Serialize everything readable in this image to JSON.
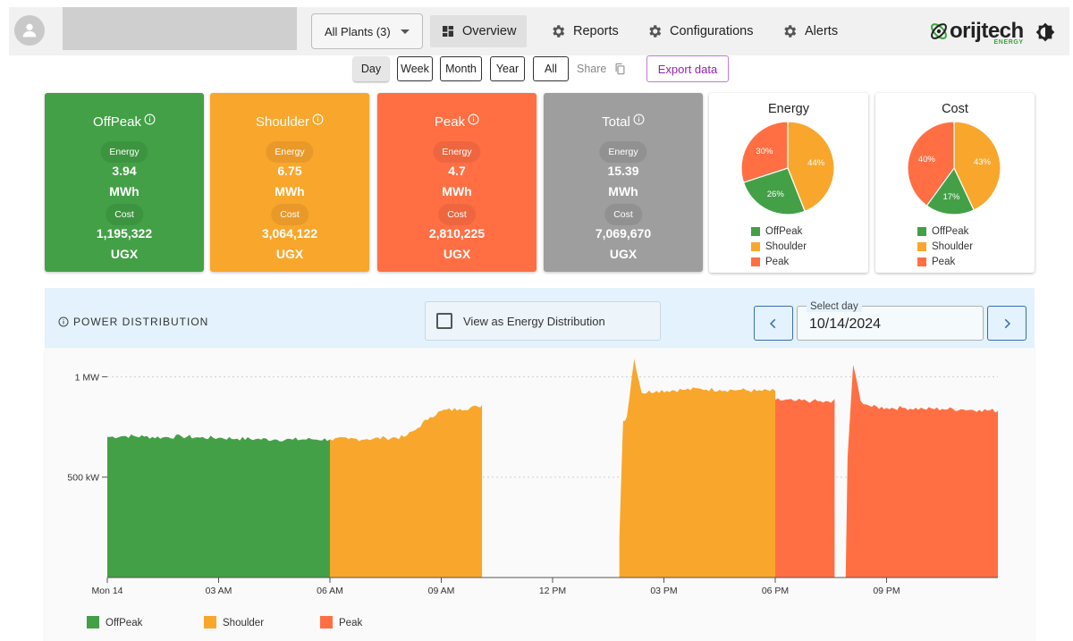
{
  "header": {
    "plants_select": "All Plants (3)",
    "tabs": [
      {
        "label": "Overview",
        "icon": "dashboard-icon",
        "active": true
      },
      {
        "label": "Reports",
        "icon": "gear-icon",
        "active": false
      },
      {
        "label": "Configurations",
        "icon": "gear-icon",
        "active": false
      },
      {
        "label": "Alerts",
        "icon": "gear-icon",
        "active": false
      }
    ],
    "logo": {
      "name": "orijtech",
      "sub": "ENERGY"
    }
  },
  "toolbar": {
    "ranges": [
      "Day",
      "Week",
      "Month",
      "Year",
      "All"
    ],
    "active_range": "Day",
    "share_label": "Share",
    "export_label": "Export data"
  },
  "summary": {
    "energy_label": "Energy",
    "cost_label": "Cost",
    "cards": [
      {
        "key": "offpeak",
        "title": "OffPeak",
        "energy": "3.94",
        "energy_unit": "MWh",
        "cost": "1,195,322",
        "cost_unit": "UGX"
      },
      {
        "key": "shoulder",
        "title": "Shoulder",
        "energy": "6.75",
        "energy_unit": "MWh",
        "cost": "3,064,122",
        "cost_unit": "UGX"
      },
      {
        "key": "peak",
        "title": "Peak",
        "energy": "4.7",
        "energy_unit": "MWh",
        "cost": "2,810,225",
        "cost_unit": "UGX"
      },
      {
        "key": "total",
        "title": "Total",
        "energy": "15.39",
        "energy_unit": "MWh",
        "cost": "7,069,670",
        "cost_unit": "UGX"
      }
    ]
  },
  "colors": {
    "offpeak": "#43a047",
    "shoulder": "#f8a72c",
    "peak": "#ff6f43",
    "total": "#9e9e9e",
    "accent": "#8e24aa"
  },
  "pies": [
    {
      "title": "Energy",
      "slices": [
        {
          "name": "Shoulder",
          "pct": 44,
          "label": "44%"
        },
        {
          "name": "OffPeak",
          "pct": 26,
          "label": "26%"
        },
        {
          "name": "Peak",
          "pct": 30,
          "label": "30%"
        }
      ]
    },
    {
      "title": "Cost",
      "slices": [
        {
          "name": "Shoulder",
          "pct": 43,
          "label": "43%"
        },
        {
          "name": "OffPeak",
          "pct": 17,
          "label": "17%"
        },
        {
          "name": "Peak",
          "pct": 40,
          "label": "40%"
        }
      ]
    }
  ],
  "pie_legend": [
    "OffPeak",
    "Shoulder",
    "Peak"
  ],
  "power": {
    "title": "POWER DISTRIBUTION",
    "toggle_label": "View as Energy Distribution",
    "date_label": "Select day",
    "date_value": "10/14/2024"
  },
  "chart_data": {
    "type": "area",
    "x_ticks": [
      "Mon 14",
      "03 AM",
      "06 AM",
      "09 AM",
      "12 PM",
      "03 PM",
      "06 PM",
      "09 PM"
    ],
    "y_ticks": [
      {
        "value": 500,
        "label": "500 kW"
      },
      {
        "value": 1000,
        "label": "1 MW"
      }
    ],
    "ylim": [
      0,
      1100
    ],
    "xlim_hours": [
      0,
      24
    ],
    "legend": [
      "OffPeak",
      "Shoulder",
      "Peak"
    ],
    "series": [
      {
        "name": "OffPeak",
        "points": [
          [
            0.0,
            700
          ],
          [
            0.5,
            705
          ],
          [
            1.0,
            702
          ],
          [
            1.5,
            698
          ],
          [
            2.0,
            703
          ],
          [
            2.5,
            697
          ],
          [
            3.0,
            696
          ],
          [
            3.5,
            692
          ],
          [
            4.0,
            690
          ],
          [
            4.5,
            688
          ],
          [
            5.0,
            687
          ],
          [
            5.5,
            689
          ],
          [
            6.0,
            688
          ]
        ]
      },
      {
        "name": "Shoulder",
        "points": [
          [
            6.0,
            688
          ],
          [
            6.5,
            690
          ],
          [
            7.0,
            690
          ],
          [
            7.5,
            695
          ],
          [
            8.0,
            700
          ],
          [
            8.3,
            735
          ],
          [
            8.7,
            800
          ],
          [
            9.0,
            830
          ],
          [
            9.5,
            840
          ],
          [
            10.0,
            850
          ],
          [
            10.1,
            860
          ],
          [
            10.1,
            0
          ],
          [
            13.8,
            0
          ],
          [
            13.8,
            200
          ],
          [
            13.85,
            500
          ],
          [
            13.9,
            780
          ],
          [
            14.0,
            800
          ],
          [
            14.2,
            1090
          ],
          [
            14.4,
            920
          ],
          [
            14.8,
            930
          ],
          [
            15.5,
            935
          ],
          [
            16.0,
            940
          ],
          [
            16.5,
            935
          ],
          [
            17.0,
            935
          ],
          [
            17.5,
            930
          ],
          [
            18.0,
            930
          ]
        ]
      },
      {
        "name": "Peak",
        "points": [
          [
            18.0,
            885
          ],
          [
            18.5,
            880
          ],
          [
            19.0,
            880
          ],
          [
            19.5,
            870
          ],
          [
            19.6,
            890
          ],
          [
            19.6,
            0
          ],
          [
            19.9,
            0
          ],
          [
            19.95,
            600
          ],
          [
            20.1,
            1060
          ],
          [
            20.3,
            880
          ],
          [
            20.6,
            850
          ],
          [
            21.0,
            845
          ],
          [
            21.5,
            845
          ],
          [
            22.0,
            840
          ],
          [
            22.5,
            840
          ],
          [
            23.0,
            838
          ],
          [
            23.5,
            835
          ],
          [
            24.0,
            830
          ]
        ]
      }
    ]
  }
}
